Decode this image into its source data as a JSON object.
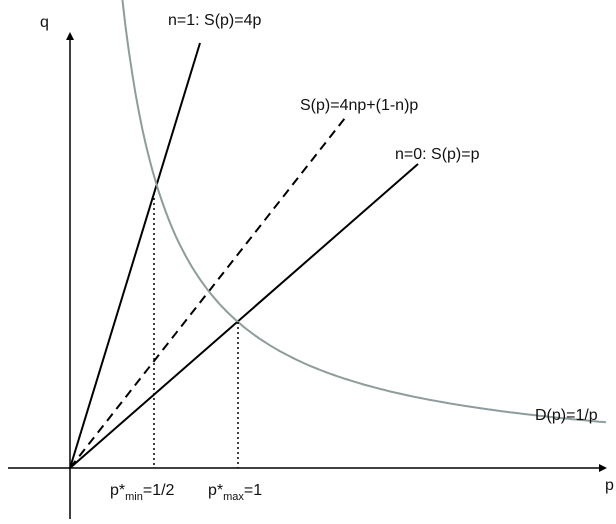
{
  "axes": {
    "y_label": "q",
    "x_label": "p"
  },
  "curves": {
    "supply_n1_label": "n=1: S(p)=4p",
    "supply_general_label": "S(p)=4np+(1-n)p",
    "supply_n0_label": "n=0: S(p)=p",
    "demand_label": "D(p)=1/p"
  },
  "ticks": {
    "p_min": {
      "main": "p*",
      "sub": "min",
      "value": "=1/2"
    },
    "p_max": {
      "main": "p*",
      "sub": "max",
      "value": "=1"
    }
  },
  "colors": {
    "axis": "#000000",
    "supply": "#000000",
    "demand": "#8e9c9c"
  }
}
